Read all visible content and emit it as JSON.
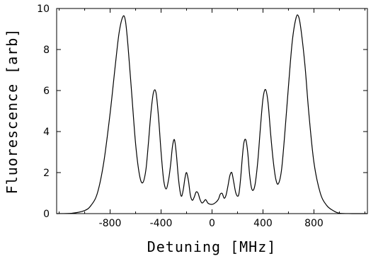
{
  "chart_data": {
    "type": "line",
    "title": "",
    "xlabel": "Detuning [MHz]",
    "ylabel": "Fluorescence [arb]",
    "xlim": [
      -1220,
      1220
    ],
    "ylim": [
      0,
      10
    ],
    "grid": false,
    "x_ticks": [
      -800,
      -400,
      0,
      400,
      800
    ],
    "x_tick_labels": [
      "-800",
      "-400",
      "0",
      "400",
      "800"
    ],
    "y_ticks": [
      0,
      2,
      4,
      6,
      8,
      10
    ],
    "y_tick_labels": [
      "0",
      "2",
      "4",
      "6",
      "8",
      "10"
    ],
    "series": [
      {
        "color": "#000000",
        "x": [
          -1220,
          -1100,
          -1000,
          -950,
          -900,
          -850,
          -800,
          -760,
          -730,
          -700,
          -680,
          -660,
          -630,
          -600,
          -570,
          -545,
          -520,
          -500,
          -480,
          -460,
          -440,
          -420,
          -400,
          -380,
          -360,
          -340,
          -325,
          -310,
          -295,
          -280,
          -265,
          -250,
          -238,
          -225,
          -212,
          -200,
          -185,
          -170,
          -155,
          -140,
          -125,
          -110,
          -95,
          -80,
          -65,
          -50,
          -30,
          0,
          30,
          50,
          65,
          80,
          95,
          110,
          125,
          140,
          155,
          170,
          185,
          200,
          212,
          225,
          238,
          250,
          265,
          280,
          295,
          310,
          325,
          340,
          360,
          380,
          400,
          420,
          440,
          460,
          480,
          500,
          520,
          545,
          570,
          600,
          630,
          660,
          680,
          700,
          730,
          760,
          800,
          850,
          900,
          950,
          1000,
          1100,
          1220
        ],
        "y": [
          0.0,
          0.02,
          0.15,
          0.4,
          1.0,
          2.5,
          4.9,
          7.2,
          8.8,
          9.6,
          9.4,
          8.2,
          5.8,
          3.4,
          1.9,
          1.5,
          2.1,
          3.4,
          4.9,
          5.9,
          5.9,
          4.7,
          3.0,
          1.65,
          1.2,
          1.7,
          2.4,
          3.3,
          3.6,
          2.9,
          1.8,
          1.05,
          0.85,
          1.2,
          1.75,
          2.0,
          1.6,
          0.9,
          0.65,
          0.8,
          1.05,
          1.0,
          0.7,
          0.52,
          0.58,
          0.68,
          0.5,
          0.45,
          0.55,
          0.7,
          0.95,
          0.98,
          0.75,
          0.9,
          1.35,
          1.85,
          2.0,
          1.55,
          1.05,
          0.85,
          1.0,
          1.75,
          2.75,
          3.45,
          3.6,
          3.0,
          1.9,
          1.25,
          1.15,
          1.5,
          2.6,
          4.2,
          5.6,
          6.05,
          5.4,
          3.9,
          2.6,
          1.7,
          1.45,
          2.1,
          3.8,
          6.2,
          8.4,
          9.55,
          9.6,
          8.9,
          7.2,
          4.9,
          2.5,
          1.0,
          0.4,
          0.15,
          0.02,
          0.0,
          0.0
        ]
      }
    ]
  }
}
